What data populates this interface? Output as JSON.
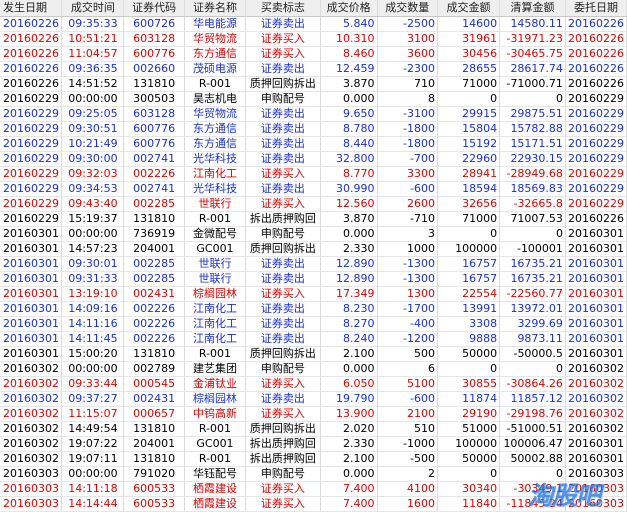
{
  "columns": [
    "发生日期",
    "成交时间",
    "证券代码",
    "证券名称",
    "买卖标志",
    "成交价格",
    "成交数量",
    "成交金额",
    "清算金额",
    "委托日期"
  ],
  "rows": [
    {
      "type": "sell",
      "cells": [
        "20160226",
        "09:35:33",
        "600726",
        "华电能源",
        "证券卖出",
        "5.840",
        "-2500",
        "14600",
        "14580.11",
        "20160226"
      ]
    },
    {
      "type": "buy",
      "cells": [
        "20160226",
        "10:51:21",
        "603128",
        "华贸物流",
        "证券买入",
        "10.310",
        "3100",
        "31961",
        "-31971.23",
        "20160226"
      ]
    },
    {
      "type": "buy",
      "cells": [
        "20160226",
        "11:04:57",
        "600776",
        "东方通信",
        "证券买入",
        "8.460",
        "3600",
        "30456",
        "-30465.75",
        "20160226"
      ]
    },
    {
      "type": "sell",
      "cells": [
        "20160226",
        "09:36:35",
        "002660",
        "茂硕电源",
        "证券卖出",
        "12.459",
        "-2300",
        "28655",
        "28617.74",
        "20160226"
      ]
    },
    {
      "type": "other",
      "cells": [
        "20160226",
        "14:51:52",
        "131810",
        "R-001",
        "质押回购拆出",
        "3.870",
        "710",
        "71000",
        "-71000.71",
        "20160226"
      ]
    },
    {
      "type": "other",
      "cells": [
        "20160229",
        "00:00:00",
        "300503",
        "昊志机电",
        "申购配号",
        "0.000",
        "8",
        "0",
        "0",
        "20160229"
      ]
    },
    {
      "type": "sell",
      "cells": [
        "20160229",
        "09:25:05",
        "603128",
        "华贸物流",
        "证券卖出",
        "9.650",
        "-3100",
        "29915",
        "29875.51",
        "20160229"
      ]
    },
    {
      "type": "sell",
      "cells": [
        "20160229",
        "09:30:51",
        "600776",
        "东方通信",
        "证券卖出",
        "8.780",
        "-1800",
        "15804",
        "15782.88",
        "20160229"
      ]
    },
    {
      "type": "sell",
      "cells": [
        "20160229",
        "10:21:49",
        "600776",
        "东方通信",
        "证券卖出",
        "8.440",
        "-1800",
        "15192",
        "15171.51",
        "20160229"
      ]
    },
    {
      "type": "sell",
      "cells": [
        "20160229",
        "09:30:00",
        "002741",
        "光华科技",
        "证券卖出",
        "32.800",
        "-700",
        "22960",
        "22930.15",
        "20160229"
      ]
    },
    {
      "type": "buy",
      "cells": [
        "20160229",
        "09:32:03",
        "002226",
        "江南化工",
        "证券买入",
        "8.770",
        "3300",
        "28941",
        "-28949.68",
        "20160229"
      ]
    },
    {
      "type": "sell",
      "cells": [
        "20160229",
        "09:34:53",
        "002741",
        "光华科技",
        "证券卖出",
        "30.990",
        "-600",
        "18594",
        "18569.83",
        "20160229"
      ]
    },
    {
      "type": "buy",
      "cells": [
        "20160229",
        "09:43:40",
        "002285",
        "世联行",
        "证券买入",
        "12.560",
        "2600",
        "32656",
        "-32665.8",
        "20160229"
      ]
    },
    {
      "type": "other",
      "cells": [
        "20160229",
        "15:19:37",
        "131810",
        "R-001",
        "拆出质押购回",
        "3.870",
        "-710",
        "71000",
        "71007.53",
        "20160226"
      ]
    },
    {
      "type": "other",
      "cells": [
        "20160301",
        "00:00:00",
        "736919",
        "金微配号",
        "申购配号",
        "0.000",
        "3",
        "0",
        "0",
        "20160301"
      ]
    },
    {
      "type": "other",
      "cells": [
        "20160301",
        "14:57:23",
        "204001",
        "GC001",
        "质押回购拆出",
        "2.330",
        "1000",
        "100000",
        "-100001",
        "20160301"
      ]
    },
    {
      "type": "sell",
      "cells": [
        "20160301",
        "09:30:01",
        "002285",
        "世联行",
        "证券卖出",
        "12.890",
        "-1300",
        "16757",
        "16735.21",
        "20160301"
      ]
    },
    {
      "type": "sell",
      "cells": [
        "20160301",
        "09:31:33",
        "002285",
        "世联行",
        "证券卖出",
        "12.890",
        "-1300",
        "16757",
        "16735.21",
        "20160301"
      ]
    },
    {
      "type": "buy",
      "cells": [
        "20160301",
        "13:19:10",
        "002431",
        "棕榈园林",
        "证券买入",
        "17.349",
        "1300",
        "22554",
        "-22560.77",
        "20160301"
      ]
    },
    {
      "type": "sell",
      "cells": [
        "20160301",
        "14:09:16",
        "002226",
        "江南化工",
        "证券卖出",
        "8.230",
        "-1700",
        "13991",
        "13972.01",
        "20160301"
      ]
    },
    {
      "type": "sell",
      "cells": [
        "20160301",
        "14:11:16",
        "002226",
        "江南化工",
        "证券卖出",
        "8.270",
        "-400",
        "3308",
        "3299.69",
        "20160301"
      ]
    },
    {
      "type": "sell",
      "cells": [
        "20160301",
        "14:11:45",
        "002226",
        "江南化工",
        "证券卖出",
        "8.240",
        "-1200",
        "9888",
        "9873.11",
        "20160301"
      ]
    },
    {
      "type": "other",
      "cells": [
        "20160301",
        "15:00:20",
        "131810",
        "R-001",
        "质押回购拆出",
        "2.100",
        "500",
        "50000",
        "-50000.5",
        "20160301"
      ]
    },
    {
      "type": "other",
      "cells": [
        "20160302",
        "00:00:00",
        "002789",
        "建艺集团",
        "申购配号",
        "0.000",
        "6",
        "0",
        "0",
        "20160302"
      ]
    },
    {
      "type": "buy",
      "cells": [
        "20160302",
        "09:33:44",
        "000545",
        "金浦钛业",
        "证券买入",
        "6.050",
        "5100",
        "30855",
        "-30864.26",
        "20160302"
      ]
    },
    {
      "type": "sell",
      "cells": [
        "20160302",
        "09:37:27",
        "002431",
        "棕榈园林",
        "证券卖出",
        "19.790",
        "-600",
        "11874",
        "11857.12",
        "20160302"
      ]
    },
    {
      "type": "buy",
      "cells": [
        "20160302",
        "11:15:07",
        "000657",
        "中钨高新",
        "证券买入",
        "13.900",
        "2100",
        "29190",
        "-29198.76",
        "20160302"
      ]
    },
    {
      "type": "other",
      "cells": [
        "20160302",
        "14:49:54",
        "131810",
        "R-001",
        "质押回购拆出",
        "2.020",
        "510",
        "51000",
        "-51000.51",
        "20160302"
      ]
    },
    {
      "type": "other",
      "cells": [
        "20160302",
        "19:07:22",
        "204001",
        "GC001",
        "拆出质押购回",
        "2.330",
        "-1000",
        "100000",
        "100006.47",
        "20160301"
      ]
    },
    {
      "type": "other",
      "cells": [
        "20160302",
        "19:07:11",
        "131810",
        "R-001",
        "拆出质押购回",
        "2.100",
        "-500",
        "50000",
        "50002.88",
        "20160301"
      ]
    },
    {
      "type": "other",
      "cells": [
        "20160303",
        "00:00:00",
        "791020",
        "华钰配号",
        "申购配号",
        "0.000",
        "2",
        "0",
        "0",
        "20160303"
      ]
    },
    {
      "type": "buy",
      "cells": [
        "20160303",
        "14:11:18",
        "600533",
        "栖霞建设",
        "证券买入",
        "7.400",
        "4100",
        "30340",
        "-30349.1",
        "20160303"
      ]
    },
    {
      "type": "buy",
      "cells": [
        "20160303",
        "14:14:44",
        "600533",
        "栖霞建设",
        "证券买入",
        "7.400",
        "1600",
        "11840",
        "-11845.24",
        "20160303"
      ]
    }
  ],
  "watermark": "淘股吧",
  "colors": {
    "buy": "#e00000",
    "sell": "#1a2fd6",
    "other": "#000000",
    "header_bg": "#efefef"
  }
}
